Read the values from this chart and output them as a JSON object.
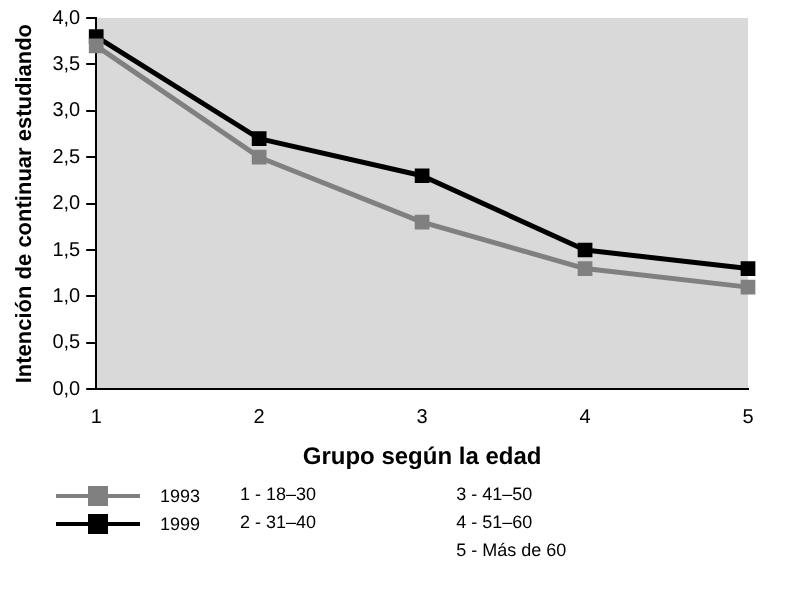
{
  "chart_data": {
    "type": "line",
    "xlabel": "Grupo según la edad",
    "ylabel": "Intención de continuar estudiando",
    "categories": [
      "1",
      "2",
      "3",
      "4",
      "5"
    ],
    "series": [
      {
        "name": "1993",
        "color": "#808080",
        "values": [
          3.7,
          2.5,
          1.8,
          1.3,
          1.1
        ]
      },
      {
        "name": "1999",
        "color": "#000000",
        "values": [
          3.8,
          2.7,
          2.3,
          1.5,
          1.3
        ]
      }
    ],
    "ylim": [
      0,
      4
    ],
    "yticks": [
      {
        "value": 0,
        "label": "0,0"
      },
      {
        "value": 0.5,
        "label": "0,5"
      },
      {
        "value": 1,
        "label": "1,0"
      },
      {
        "value": 1.5,
        "label": "1,5"
      },
      {
        "value": 2,
        "label": "2,0"
      },
      {
        "value": 2.5,
        "label": "2,5"
      },
      {
        "value": 3,
        "label": "3,0"
      },
      {
        "value": 3.5,
        "label": "3,5"
      },
      {
        "value": 4,
        "label": "4,0"
      }
    ],
    "marker": "square",
    "line_style": "solid",
    "legend": "bottom",
    "annotations": [
      "1 - 18–30",
      "2 - 31–40",
      "3 - 41–50",
      "4 - 51–60",
      "5 - Más de 60"
    ]
  }
}
